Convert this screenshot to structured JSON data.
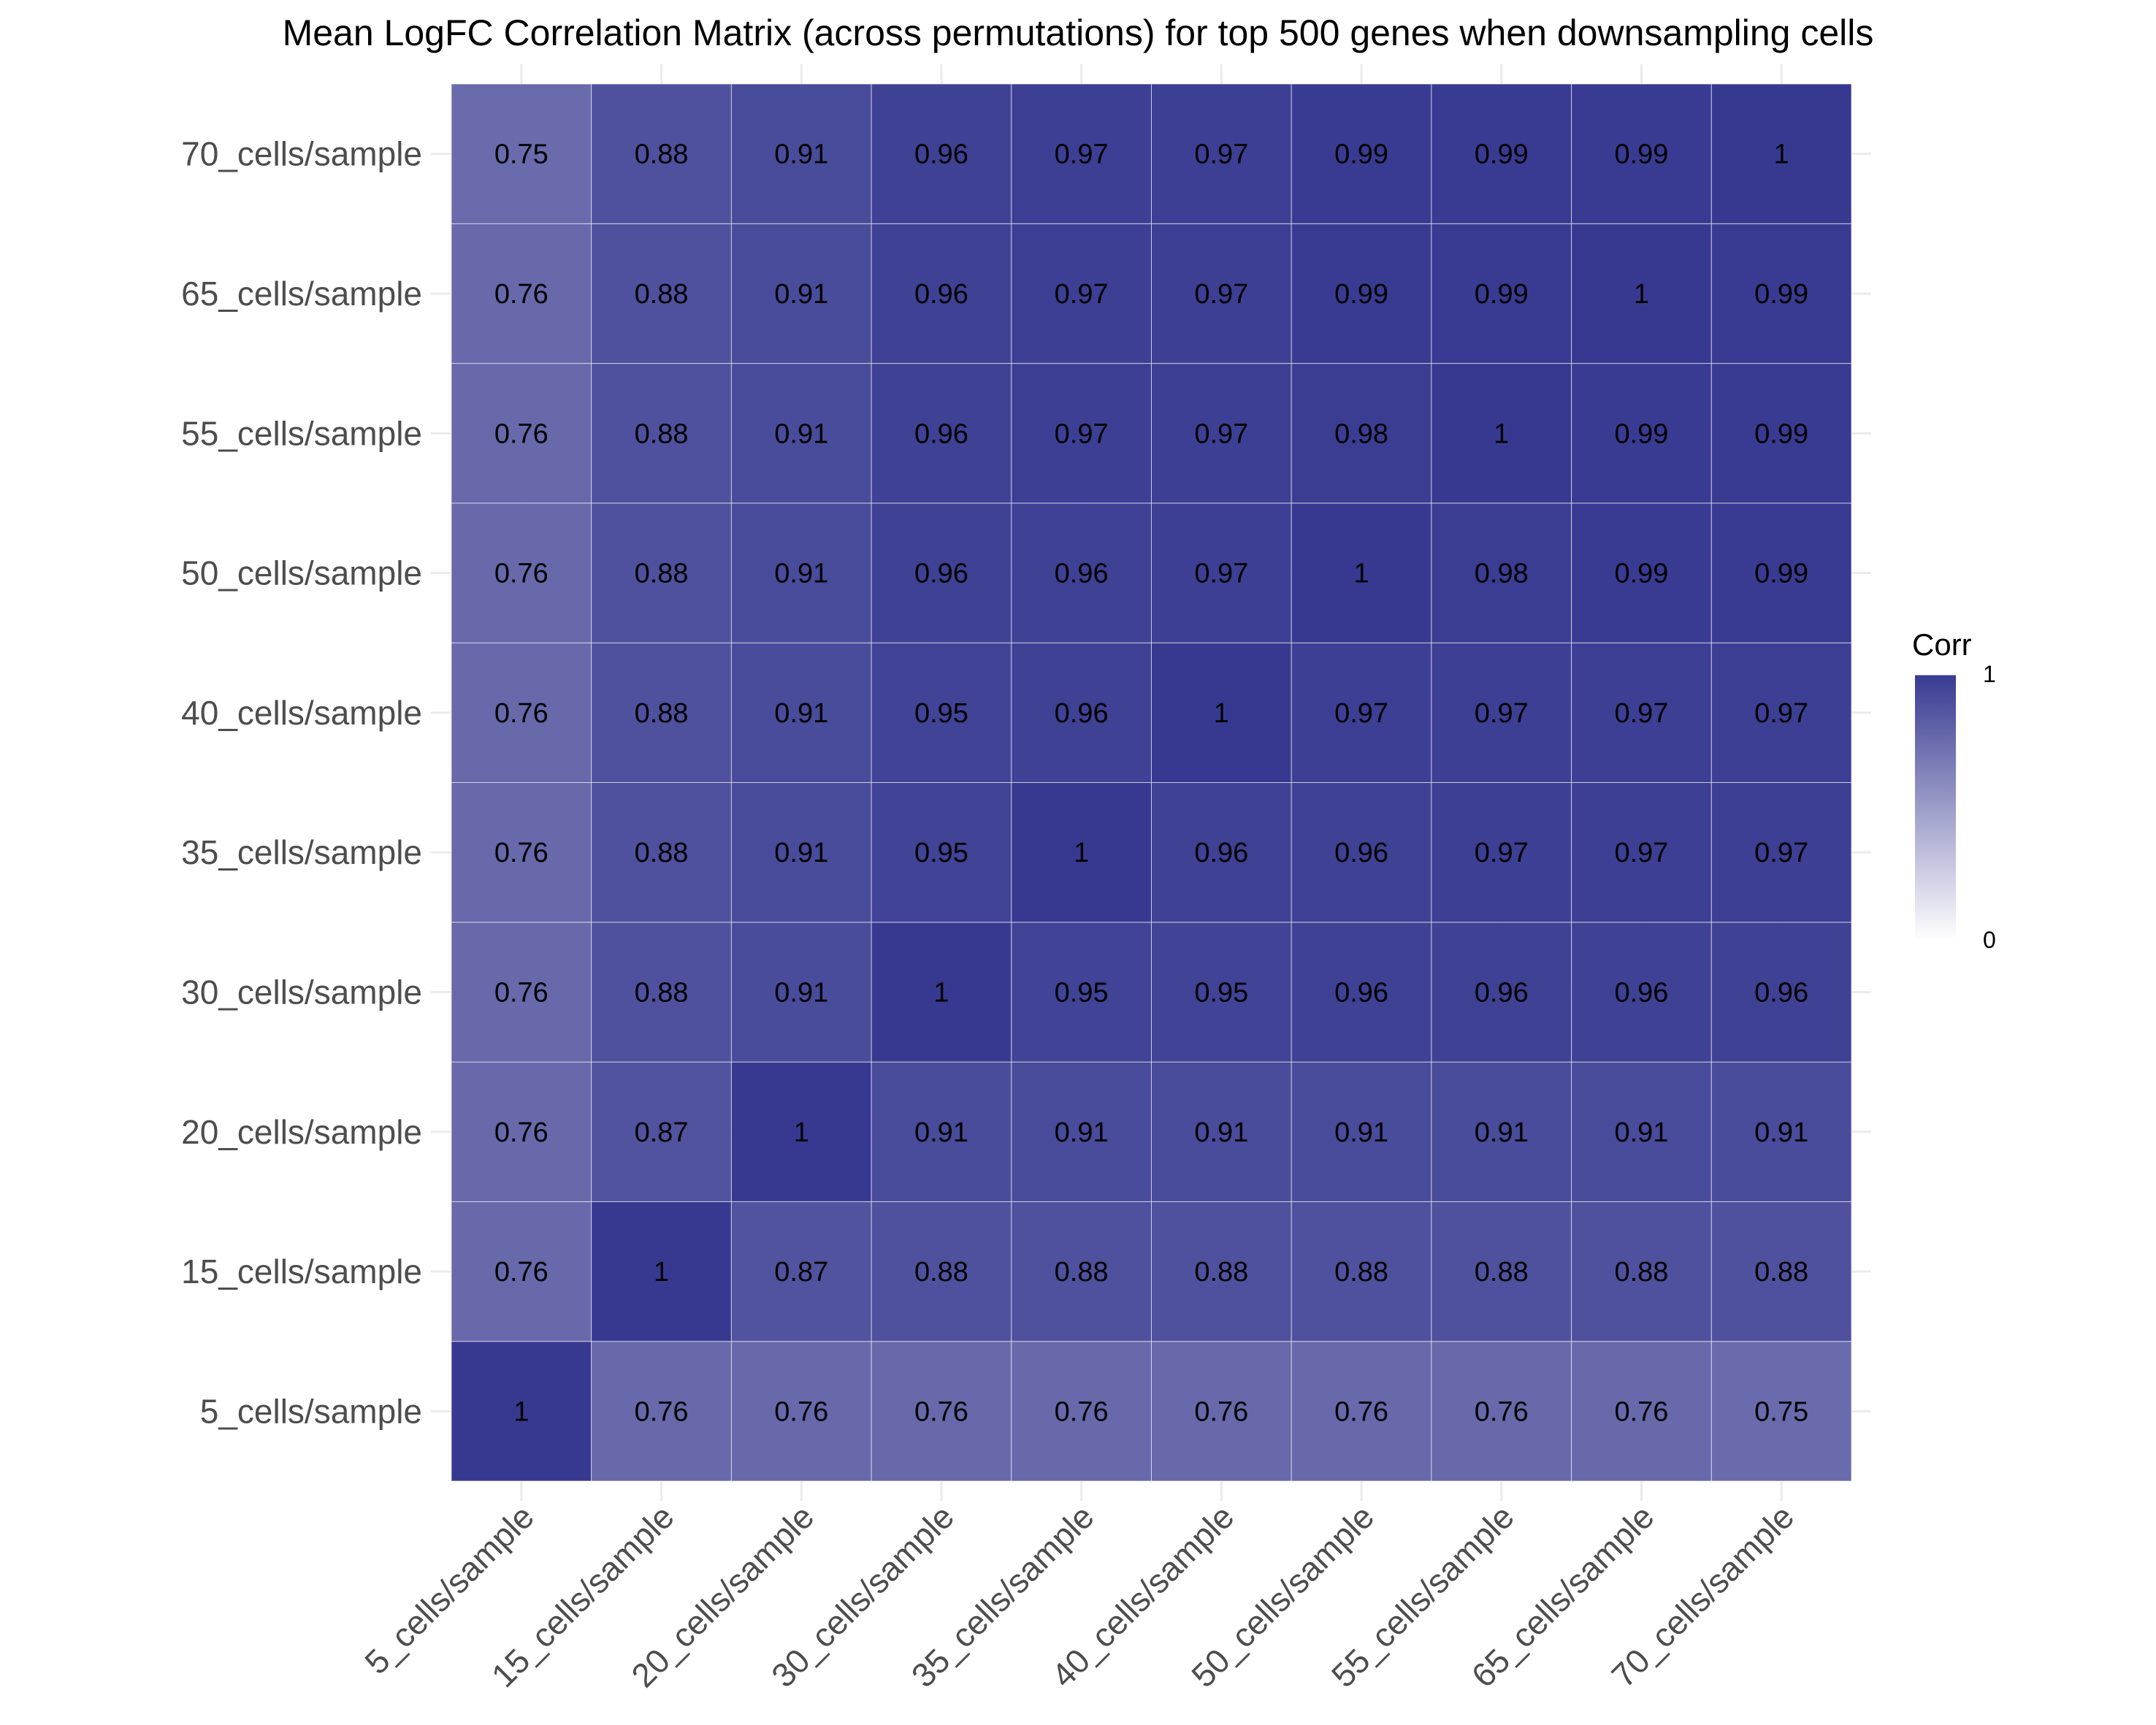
{
  "chart_data": {
    "type": "heatmap",
    "title": "Mean LogFC Correlation Matrix (across permutations) for top 500 genes when downsampling cells",
    "x_categories": [
      "5_cells/sample",
      "15_cells/sample",
      "20_cells/sample",
      "30_cells/sample",
      "35_cells/sample",
      "40_cells/sample",
      "50_cells/sample",
      "55_cells/sample",
      "65_cells/sample",
      "70_cells/sample"
    ],
    "y_categories": [
      "5_cells/sample",
      "15_cells/sample",
      "20_cells/sample",
      "30_cells/sample",
      "35_cells/sample",
      "40_cells/sample",
      "50_cells/sample",
      "55_cells/sample",
      "65_cells/sample",
      "70_cells/sample"
    ],
    "values": [
      [
        1,
        0.76,
        0.76,
        0.76,
        0.76,
        0.76,
        0.76,
        0.76,
        0.76,
        0.75
      ],
      [
        0.76,
        1,
        0.87,
        0.88,
        0.88,
        0.88,
        0.88,
        0.88,
        0.88,
        0.88
      ],
      [
        0.76,
        0.87,
        1,
        0.91,
        0.91,
        0.91,
        0.91,
        0.91,
        0.91,
        0.91
      ],
      [
        0.76,
        0.88,
        0.91,
        1,
        0.95,
        0.95,
        0.96,
        0.96,
        0.96,
        0.96
      ],
      [
        0.76,
        0.88,
        0.91,
        0.95,
        1,
        0.96,
        0.96,
        0.97,
        0.97,
        0.97
      ],
      [
        0.76,
        0.88,
        0.91,
        0.95,
        0.96,
        1,
        0.97,
        0.97,
        0.97,
        0.97
      ],
      [
        0.76,
        0.88,
        0.91,
        0.96,
        0.96,
        0.97,
        1,
        0.98,
        0.99,
        0.99
      ],
      [
        0.76,
        0.88,
        0.91,
        0.96,
        0.97,
        0.97,
        0.98,
        1,
        0.99,
        0.99
      ],
      [
        0.76,
        0.88,
        0.91,
        0.96,
        0.97,
        0.97,
        0.99,
        0.99,
        1,
        0.99
      ],
      [
        0.75,
        0.88,
        0.91,
        0.96,
        0.97,
        0.97,
        0.99,
        0.99,
        0.99,
        1
      ]
    ],
    "legend": {
      "title": "Corr",
      "min": 0,
      "max": 1,
      "min_label": "0",
      "max_label": "1",
      "position": "right"
    },
    "colors": {
      "low": "#ffffff",
      "high": "#373991",
      "cell_border": "#ffffff"
    },
    "grid": false
  }
}
